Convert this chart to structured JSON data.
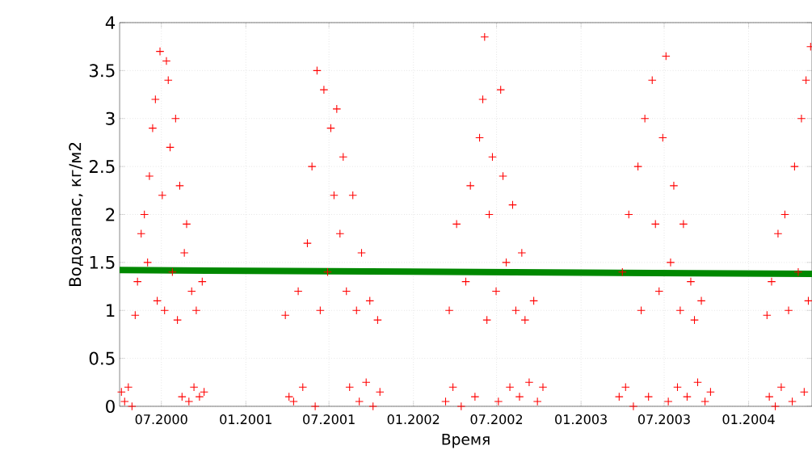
{
  "chart_data": {
    "type": "scatter",
    "xlabel": "Время",
    "ylabel": "Водозапас, кг/м2",
    "grid": true,
    "xlim": [
      "2000-04-01",
      "2004-05-18"
    ],
    "ylim": [
      0,
      4
    ],
    "yticks": [
      0,
      0.5,
      1,
      1.5,
      2,
      2.5,
      3,
      3.5,
      4
    ],
    "xticks": [
      {
        "value": "2000-07-01",
        "label": "07.2000"
      },
      {
        "value": "2001-01-01",
        "label": "01.2001"
      },
      {
        "value": "2001-07-01",
        "label": "07.2001"
      },
      {
        "value": "2002-01-01",
        "label": "01.2002"
      },
      {
        "value": "2002-07-01",
        "label": "07.2002"
      },
      {
        "value": "2003-01-01",
        "label": "01.2003"
      },
      {
        "value": "2003-07-01",
        "label": "07.2003"
      },
      {
        "value": "2004-01-01",
        "label": "01.2004"
      }
    ],
    "series": [
      {
        "color": "#ff0000",
        "marker": "cross",
        "x": [
          "2000-04-05",
          "2000-04-12",
          "2000-04-20",
          "2000-04-28",
          "2000-05-05",
          "2000-05-10",
          "2000-05-18",
          "2000-05-25",
          "2000-06-01",
          "2000-06-05",
          "2000-06-12",
          "2000-06-18",
          "2000-06-22",
          "2000-06-28",
          "2000-07-03",
          "2000-07-08",
          "2000-07-12",
          "2000-07-16",
          "2000-07-20",
          "2000-07-25",
          "2000-08-01",
          "2000-08-05",
          "2000-08-10",
          "2000-08-15",
          "2000-08-20",
          "2000-08-25",
          "2000-08-30",
          "2000-09-05",
          "2000-09-10",
          "2000-09-15",
          "2000-09-22",
          "2000-09-28",
          "2000-10-02",
          "2001-03-28",
          "2001-04-05",
          "2001-04-15",
          "2001-04-25",
          "2001-05-05",
          "2001-05-15",
          "2001-05-25",
          "2001-06-01",
          "2001-06-05",
          "2001-06-12",
          "2001-06-20",
          "2001-06-28",
          "2001-07-05",
          "2001-07-12",
          "2001-07-18",
          "2001-07-25",
          "2001-08-01",
          "2001-08-08",
          "2001-08-15",
          "2001-08-22",
          "2001-08-30",
          "2001-09-05",
          "2001-09-10",
          "2001-09-20",
          "2001-09-28",
          "2001-10-05",
          "2001-10-15",
          "2001-10-20",
          "2002-03-12",
          "2002-03-20",
          "2002-03-28",
          "2002-04-05",
          "2002-04-15",
          "2002-04-25",
          "2002-05-05",
          "2002-05-15",
          "2002-05-25",
          "2002-06-01",
          "2002-06-05",
          "2002-06-10",
          "2002-06-15",
          "2002-06-22",
          "2002-06-30",
          "2002-07-05",
          "2002-07-10",
          "2002-07-15",
          "2002-07-22",
          "2002-07-30",
          "2002-08-05",
          "2002-08-12",
          "2002-08-20",
          "2002-08-25",
          "2002-09-01",
          "2002-09-10",
          "2002-09-20",
          "2002-09-28",
          "2002-10-10",
          "2003-03-25",
          "2003-04-01",
          "2003-04-08",
          "2003-04-15",
          "2003-04-25",
          "2003-05-05",
          "2003-05-12",
          "2003-05-20",
          "2003-05-28",
          "2003-06-05",
          "2003-06-12",
          "2003-06-20",
          "2003-06-28",
          "2003-07-05",
          "2003-07-10",
          "2003-07-15",
          "2003-07-22",
          "2003-07-30",
          "2003-08-05",
          "2003-08-12",
          "2003-08-20",
          "2003-08-28",
          "2003-09-05",
          "2003-09-12",
          "2003-09-20",
          "2003-09-28",
          "2003-10-10",
          "2004-02-10",
          "2004-02-15",
          "2004-02-20",
          "2004-02-28",
          "2004-03-05",
          "2004-03-12",
          "2004-03-20",
          "2004-03-28",
          "2004-04-05",
          "2004-04-10",
          "2004-04-18",
          "2004-04-25",
          "2004-05-01",
          "2004-05-05",
          "2004-05-10",
          "2004-05-15"
        ],
        "values": [
          0.15,
          0.05,
          0.2,
          0.0,
          0.95,
          1.3,
          1.8,
          2.0,
          1.5,
          2.4,
          2.9,
          3.2,
          1.1,
          3.7,
          2.2,
          1.0,
          3.6,
          3.4,
          2.7,
          1.4,
          3.0,
          0.9,
          2.3,
          0.1,
          1.6,
          1.9,
          0.05,
          1.2,
          0.2,
          1.0,
          0.1,
          1.3,
          0.15,
          0.95,
          0.1,
          0.05,
          1.2,
          0.2,
          1.7,
          2.5,
          0.0,
          3.5,
          1.0,
          3.3,
          1.4,
          2.9,
          2.2,
          3.1,
          1.8,
          2.6,
          1.2,
          0.2,
          2.2,
          1.0,
          0.05,
          1.6,
          0.25,
          1.1,
          0.0,
          0.9,
          0.15,
          0.05,
          1.0,
          0.2,
          1.9,
          0.0,
          1.3,
          2.3,
          0.1,
          2.8,
          3.2,
          3.85,
          0.9,
          2.0,
          2.6,
          1.2,
          0.05,
          3.3,
          2.4,
          1.5,
          0.2,
          2.1,
          1.0,
          0.1,
          1.6,
          0.9,
          0.25,
          1.1,
          0.05,
          0.2,
          0.1,
          1.4,
          0.2,
          2.0,
          0.0,
          2.5,
          1.0,
          3.0,
          0.1,
          3.4,
          1.9,
          1.2,
          2.8,
          3.65,
          0.05,
          1.5,
          2.3,
          0.2,
          1.0,
          1.9,
          0.1,
          1.3,
          0.9,
          0.25,
          1.1,
          0.05,
          0.15,
          0.95,
          0.1,
          1.3,
          0.0,
          1.8,
          0.2,
          2.0,
          1.0,
          0.05,
          2.5,
          1.4,
          3.0,
          0.15,
          3.4,
          1.1,
          3.75
        ]
      },
      {
        "type": "line",
        "color": "#008800",
        "marker": "none",
        "line_style": "solid",
        "x": [
          "2000-04-01",
          "2004-05-18"
        ],
        "values": [
          1.42,
          1.38
        ]
      }
    ]
  }
}
